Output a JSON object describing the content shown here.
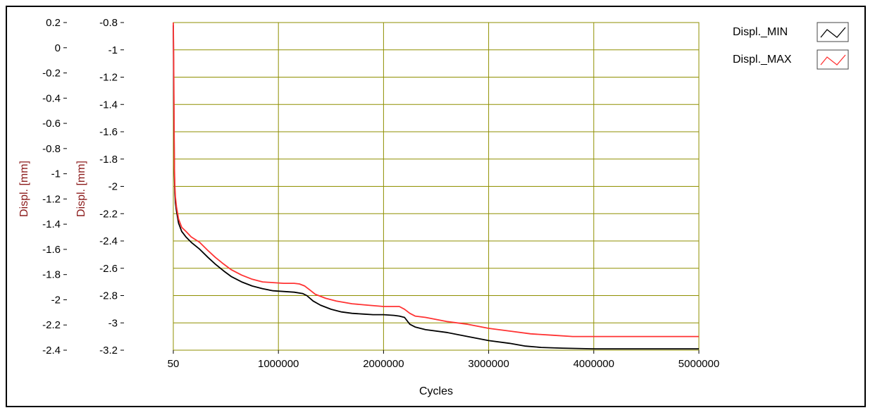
{
  "chart_data": {
    "type": "line",
    "xlabel": "Cycles",
    "ylabel_left": "Displ. [mm]",
    "ylabel_right": "Displ. [mm]",
    "xlim": [
      50,
      5000000
    ],
    "x_ticks": [
      "50",
      "1000000",
      "2000000",
      "3000000",
      "4000000",
      "5000000"
    ],
    "x_tick_values": [
      50,
      1000000,
      2000000,
      3000000,
      4000000,
      5000000
    ],
    "y_left_ticks": [
      "0.2",
      "0",
      "-0.2",
      "-0.4",
      "-0.6",
      "-0.8",
      "-1",
      "-1.2",
      "-1.4",
      "-1.6",
      "-1.8",
      "-2",
      "-2.2",
      "-2.4"
    ],
    "y_left_lim": [
      -2.4,
      0.2
    ],
    "y_right_ticks": [
      "-0.8",
      "-1",
      "-1.2",
      "-1.4",
      "-1.6",
      "-1.8",
      "-2",
      "-2.2",
      "-2.4",
      "-2.6",
      "-2.8",
      "-3",
      "-3.2"
    ],
    "y_right_lim": [
      -3.2,
      -0.8
    ],
    "grid": true,
    "legend_position": "top-right",
    "colors": {
      "grid": "#8f8f00",
      "axis_label": "#8b1a1a",
      "min_line": "#000000",
      "max_line": "#ff3333"
    },
    "series": [
      {
        "name": "Displ._MIN",
        "color": "#000000",
        "x": [
          50,
          5000,
          10000,
          15000,
          20000,
          30000,
          50000,
          80000,
          120000,
          170000,
          250000,
          330000,
          400000,
          480000,
          550000,
          650000,
          750000,
          850000,
          950000,
          1050000,
          1150000,
          1230000,
          1270000,
          1330000,
          1400000,
          1500000,
          1600000,
          1700000,
          1800000,
          1900000,
          2000000,
          2100000,
          2150000,
          2200000,
          2250000,
          2300000,
          2400000,
          2600000,
          2800000,
          3000000,
          3200000,
          3350000,
          3500000,
          3700000,
          4000000,
          4300000,
          4600000,
          4900000,
          5000000
        ],
        "y": [
          -0.82,
          -1.4,
          -1.9,
          -2.05,
          -2.12,
          -2.18,
          -2.27,
          -2.33,
          -2.37,
          -2.41,
          -2.46,
          -2.52,
          -2.57,
          -2.62,
          -2.66,
          -2.7,
          -2.73,
          -2.75,
          -2.765,
          -2.77,
          -2.775,
          -2.785,
          -2.8,
          -2.84,
          -2.87,
          -2.9,
          -2.92,
          -2.93,
          -2.935,
          -2.94,
          -2.94,
          -2.945,
          -2.95,
          -2.96,
          -3.01,
          -3.03,
          -3.05,
          -3.07,
          -3.1,
          -3.13,
          -3.15,
          -3.17,
          -3.18,
          -3.185,
          -3.19,
          -3.19,
          -3.19,
          -3.19,
          -3.19
        ]
      },
      {
        "name": "Displ._MAX",
        "color": "#ff3333",
        "x": [
          50,
          5000,
          10000,
          15000,
          20000,
          30000,
          50000,
          80000,
          120000,
          170000,
          250000,
          330000,
          400000,
          480000,
          550000,
          650000,
          750000,
          850000,
          950000,
          1050000,
          1150000,
          1200000,
          1250000,
          1300000,
          1350000,
          1450000,
          1550000,
          1700000,
          1850000,
          2000000,
          2150000,
          2200000,
          2250000,
          2300000,
          2400000,
          2600000,
          2800000,
          3000000,
          3200000,
          3400000,
          3600000,
          3800000,
          4000000,
          4300000,
          4600000,
          4900000,
          5000000
        ],
        "y": [
          -0.8,
          -1.2,
          -1.85,
          -2.0,
          -2.08,
          -2.15,
          -2.24,
          -2.3,
          -2.33,
          -2.37,
          -2.41,
          -2.47,
          -2.52,
          -2.57,
          -2.61,
          -2.65,
          -2.68,
          -2.7,
          -2.705,
          -2.71,
          -2.71,
          -2.715,
          -2.73,
          -2.76,
          -2.79,
          -2.82,
          -2.84,
          -2.86,
          -2.87,
          -2.88,
          -2.88,
          -2.9,
          -2.93,
          -2.95,
          -2.96,
          -2.99,
          -3.01,
          -3.04,
          -3.06,
          -3.08,
          -3.09,
          -3.1,
          -3.1,
          -3.1,
          -3.1,
          -3.1,
          -3.1
        ]
      }
    ]
  }
}
